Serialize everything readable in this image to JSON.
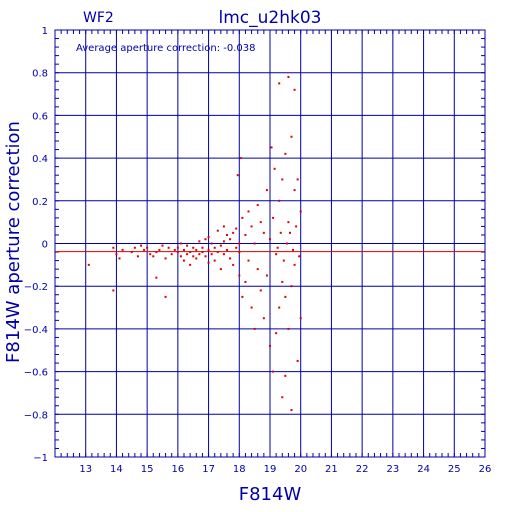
{
  "chart_data": {
    "type": "scatter",
    "panel_label": "WF2",
    "title": "lmc_u2hk03",
    "annotation": "Average aperture correction: -0.038",
    "xlabel": "F814W",
    "ylabel": "F814W aperture correction",
    "xlim": [
      12,
      26
    ],
    "ylim": [
      -1,
      1
    ],
    "x_ticks": [
      13,
      14,
      15,
      16,
      17,
      18,
      19,
      20,
      21,
      22,
      23,
      24,
      25,
      26
    ],
    "y_ticks": [
      -1,
      -0.8,
      -0.6,
      -0.4,
      -0.2,
      0,
      0.2,
      0.4,
      0.6,
      0.8,
      1
    ],
    "y_tick_labels": [
      "−1",
      "−0.8",
      "−0.6",
      "−0.4",
      "−0.2",
      "0",
      "0.2",
      "0.4",
      "0.6",
      "0.8",
      "1"
    ],
    "grid": true,
    "reference_line": 0,
    "mean_line": -0.038,
    "colors": {
      "axes": "#0000aa",
      "points": "#dd0000",
      "mean_line": "#dd0000"
    },
    "points": [
      [
        13.1,
        -0.1
      ],
      [
        13.9,
        -0.22
      ],
      [
        13.9,
        -0.02
      ],
      [
        14.0,
        -0.05
      ],
      [
        14.1,
        -0.07
      ],
      [
        14.2,
        -0.03
      ],
      [
        14.5,
        -0.04
      ],
      [
        14.6,
        -0.02
      ],
      [
        14.7,
        -0.06
      ],
      [
        14.8,
        -0.01
      ],
      [
        14.9,
        -0.03
      ],
      [
        15.0,
        -0.02
      ],
      [
        15.1,
        -0.05
      ],
      [
        15.2,
        -0.06
      ],
      [
        15.3,
        -0.04
      ],
      [
        15.3,
        -0.16
      ],
      [
        15.4,
        -0.03
      ],
      [
        15.5,
        -0.01
      ],
      [
        15.6,
        -0.07
      ],
      [
        15.6,
        -0.25
      ],
      [
        15.7,
        -0.02
      ],
      [
        15.8,
        -0.05
      ],
      [
        15.9,
        -0.03
      ],
      [
        16.0,
        -0.04
      ],
      [
        16.0,
        -0.02
      ],
      [
        16.1,
        -0.06
      ],
      [
        16.1,
        0.0
      ],
      [
        16.2,
        -0.08
      ],
      [
        16.2,
        -0.03
      ],
      [
        16.3,
        -0.05
      ],
      [
        16.3,
        -0.01
      ],
      [
        16.4,
        -0.1
      ],
      [
        16.4,
        -0.04
      ],
      [
        16.5,
        -0.02
      ],
      [
        16.5,
        -0.06
      ],
      [
        16.6,
        -0.03
      ],
      [
        16.6,
        -0.07
      ],
      [
        16.7,
        -0.05
      ],
      [
        16.7,
        0.01
      ],
      [
        16.8,
        -0.02
      ],
      [
        16.8,
        -0.04
      ],
      [
        16.9,
        -0.06
      ],
      [
        16.9,
        0.02
      ],
      [
        17.0,
        -0.03
      ],
      [
        17.0,
        -0.09
      ],
      [
        17.0,
        0.03
      ],
      [
        17.1,
        -0.05
      ],
      [
        17.1,
        0.0
      ],
      [
        17.2,
        -0.08
      ],
      [
        17.2,
        -0.02
      ],
      [
        17.3,
        0.06
      ],
      [
        17.3,
        -0.04
      ],
      [
        17.4,
        -0.01
      ],
      [
        17.4,
        -0.12
      ],
      [
        17.5,
        0.01
      ],
      [
        17.5,
        -0.05
      ],
      [
        17.5,
        0.08
      ],
      [
        17.6,
        -0.03
      ],
      [
        17.6,
        0.04
      ],
      [
        17.7,
        -0.07
      ],
      [
        17.7,
        0.02
      ],
      [
        17.8,
        -0.1
      ],
      [
        17.8,
        0.05
      ],
      [
        17.9,
        -0.02
      ],
      [
        17.9,
        0.07
      ],
      [
        18.0,
        -0.04
      ],
      [
        18.0,
        0.0
      ],
      [
        18.0,
        -0.15
      ],
      [
        17.95,
        0.32
      ],
      [
        18.05,
        0.4
      ],
      [
        18.1,
        -0.25
      ],
      [
        18.1,
        0.12
      ],
      [
        18.2,
        -0.18
      ],
      [
        18.2,
        0.04
      ],
      [
        18.3,
        -0.08
      ],
      [
        18.3,
        0.15
      ],
      [
        18.4,
        -0.3
      ],
      [
        18.4,
        0.08
      ],
      [
        18.5,
        -0.4
      ],
      [
        18.5,
        0.0
      ],
      [
        18.6,
        -0.12
      ],
      [
        18.6,
        0.18
      ],
      [
        18.7,
        -0.22
      ],
      [
        18.7,
        0.1
      ],
      [
        18.8,
        -0.35
      ],
      [
        18.8,
        0.05
      ],
      [
        18.9,
        -0.15
      ],
      [
        18.9,
        0.25
      ],
      [
        19.0,
        -0.48
      ],
      [
        19.0,
        0.02
      ],
      [
        19.1,
        -0.6
      ],
      [
        19.1,
        0.12
      ],
      [
        19.2,
        -0.42
      ],
      [
        19.2,
        -0.05
      ],
      [
        19.3,
        -0.3
      ],
      [
        19.3,
        0.2
      ],
      [
        19.4,
        -0.18
      ],
      [
        19.4,
        0.3
      ],
      [
        19.5,
        -0.25
      ],
      [
        19.5,
        0.42
      ],
      [
        19.6,
        -0.4
      ],
      [
        19.6,
        0.1
      ],
      [
        19.7,
        -0.2
      ],
      [
        19.7,
        0.5
      ],
      [
        19.8,
        -0.1
      ],
      [
        19.8,
        0.25
      ],
      [
        19.9,
        -0.55
      ],
      [
        19.9,
        0.3
      ],
      [
        19.3,
        0.75
      ],
      [
        19.6,
        0.78
      ],
      [
        19.8,
        0.72
      ],
      [
        19.4,
        -0.72
      ],
      [
        19.7,
        -0.78
      ],
      [
        19.5,
        -0.62
      ],
      [
        20.0,
        -0.35
      ],
      [
        20.0,
        0.15
      ],
      [
        19.05,
        0.45
      ],
      [
        19.15,
        0.35
      ],
      [
        19.25,
        -0.02
      ],
      [
        19.35,
        0.05
      ],
      [
        19.45,
        -0.08
      ],
      [
        19.55,
        0.0
      ],
      [
        19.65,
        0.05
      ],
      [
        19.75,
        -0.03
      ],
      [
        19.85,
        0.08
      ],
      [
        19.95,
        -0.06
      ]
    ]
  }
}
